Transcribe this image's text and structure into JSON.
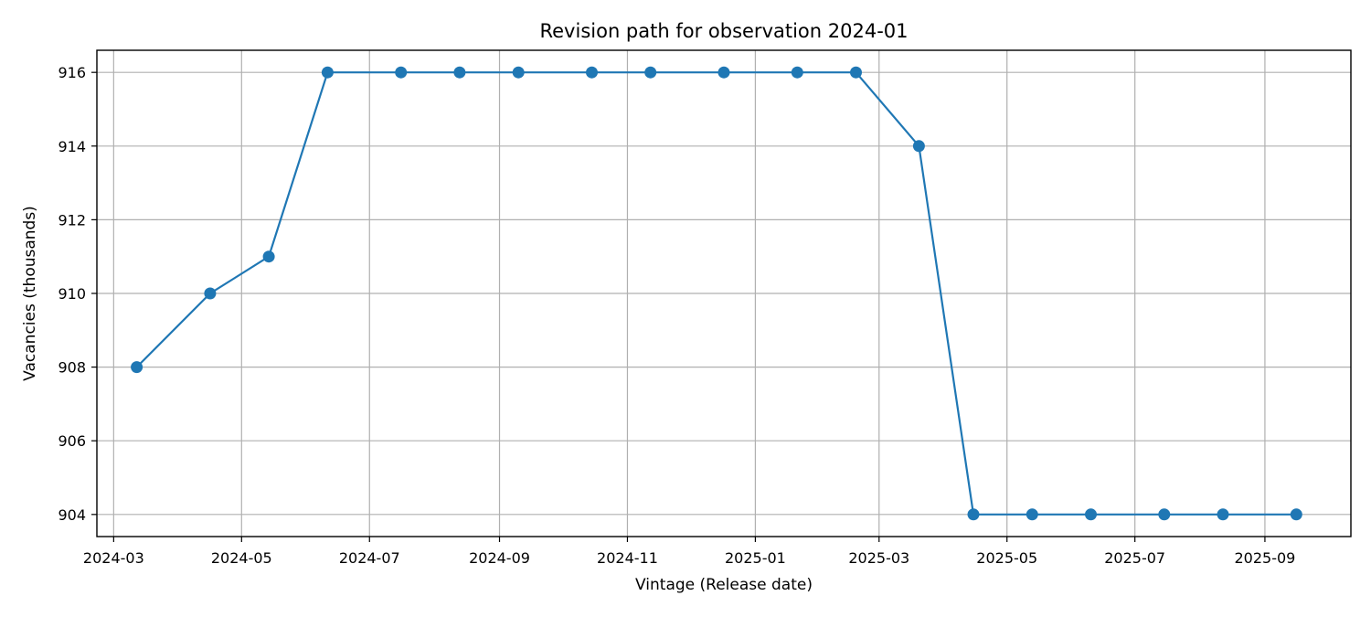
{
  "chart_data": {
    "type": "line",
    "title": "Revision path for observation 2024-01",
    "xlabel": "Vintage (Release date)",
    "ylabel": "Vacancies (thousands)",
    "grid": true,
    "color": "#1f77b4",
    "marker": "circle",
    "x_ticks": [
      "2024-03",
      "2024-05",
      "2024-07",
      "2024-09",
      "2024-11",
      "2025-01",
      "2025-03",
      "2025-05",
      "2025-07",
      "2025-09"
    ],
    "y_ticks": [
      904,
      906,
      908,
      910,
      912,
      914,
      916
    ],
    "xlim": [
      "2024-02-22",
      "2025-10-12"
    ],
    "ylim": [
      903.4,
      916.6
    ],
    "series": [
      {
        "points": [
          {
            "x": "2024-03-12",
            "y": 908
          },
          {
            "x": "2024-04-16",
            "y": 910
          },
          {
            "x": "2024-05-14",
            "y": 911
          },
          {
            "x": "2024-06-11",
            "y": 916
          },
          {
            "x": "2024-07-16",
            "y": 916
          },
          {
            "x": "2024-08-13",
            "y": 916
          },
          {
            "x": "2024-09-10",
            "y": 916
          },
          {
            "x": "2024-10-15",
            "y": 916
          },
          {
            "x": "2024-11-12",
            "y": 916
          },
          {
            "x": "2024-12-17",
            "y": 916
          },
          {
            "x": "2025-01-21",
            "y": 916
          },
          {
            "x": "2025-02-18",
            "y": 916
          },
          {
            "x": "2025-03-20",
            "y": 914
          },
          {
            "x": "2025-04-15",
            "y": 904
          },
          {
            "x": "2025-05-13",
            "y": 904
          },
          {
            "x": "2025-06-10",
            "y": 904
          },
          {
            "x": "2025-07-15",
            "y": 904
          },
          {
            "x": "2025-08-12",
            "y": 904
          },
          {
            "x": "2025-09-16",
            "y": 904
          }
        ]
      }
    ]
  }
}
